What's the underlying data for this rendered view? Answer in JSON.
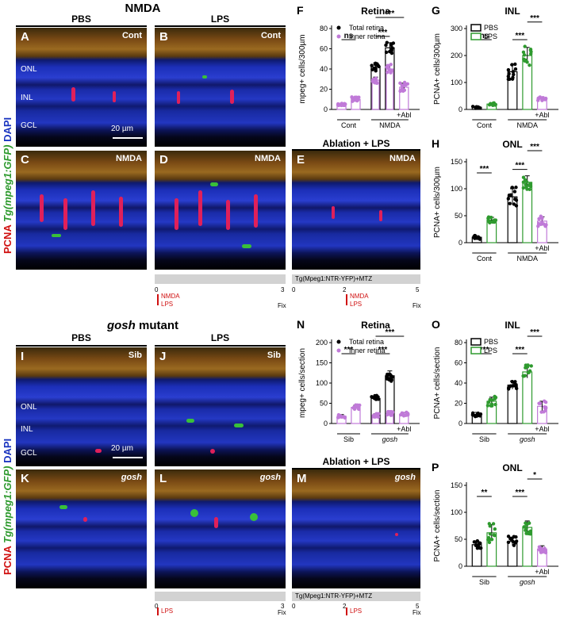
{
  "top": {
    "section_title": "NMDA",
    "col_pbs": "PBS",
    "col_lps": "LPS",
    "ablation_header": "Ablation + LPS",
    "side_label_red": "PCNA",
    "side_label_green": "Tg(mpeg1:GFP)",
    "side_label_blue": "DAPI",
    "panels": [
      {
        "letter": "A",
        "tag": "Cont"
      },
      {
        "letter": "B",
        "tag": "Cont"
      },
      {
        "letter": "C",
        "tag": "NMDA"
      },
      {
        "letter": "D",
        "tag": "NMDA"
      },
      {
        "letter": "E",
        "tag": "NMDA"
      }
    ],
    "layers": [
      "ONL",
      "INL",
      "GCL"
    ],
    "scale_bar": "20 µm",
    "timeline_d": {
      "start": "0",
      "end": "3",
      "fix": "Fix",
      "nmda": "NMDA",
      "lps": "LPS"
    },
    "timeline_e": {
      "bar_label": "Tg(Mpeg1:NTR-YFP)+MTZ",
      "start": "0",
      "mid": "2",
      "end": "5",
      "fix": "Fix",
      "nmda": "NMDA",
      "lps": "LPS"
    }
  },
  "bottom": {
    "section_title": "gosh",
    "section_title_suffix": "mutant",
    "col_pbs": "PBS",
    "col_lps": "LPS",
    "ablation_header": "Ablation + LPS",
    "side_label_red": "PCNA",
    "side_label_green": "Tg(mpeg1:GFP)",
    "side_label_blue": "DAPI",
    "panels": [
      {
        "letter": "I",
        "tag": "Sib"
      },
      {
        "letter": "J",
        "tag": "Sib"
      },
      {
        "letter": "K",
        "tag": "gosh"
      },
      {
        "letter": "L",
        "tag": "gosh"
      },
      {
        "letter": "M",
        "tag": "gosh"
      }
    ],
    "layers": [
      "ONL",
      "INL",
      "GCL"
    ],
    "scale_bar": "20 µm",
    "timeline_l": {
      "start": "0",
      "end": "3",
      "fix": "Fix",
      "lps": "LPS"
    },
    "timeline_m": {
      "bar_label": "Tg(Mpeg1:NTR-YFP)+MTZ",
      "start": "0",
      "mid": "2",
      "end": "5",
      "fix": "Fix",
      "lps": "LPS"
    }
  },
  "colors": {
    "pbs": "#000000",
    "lps": "#2e9a2e",
    "inner": "#c07ad8",
    "total": "#000000",
    "abl": "#c07ad8"
  },
  "chart_data": [
    {
      "letter": "F",
      "type": "bar",
      "title": "Retina",
      "ylabel": "mpeg+ cells/300µm",
      "ylim": [
        0,
        80
      ],
      "yticks": [
        0,
        20,
        40,
        60,
        80
      ],
      "legend": [
        "Total retina",
        "Inner retina"
      ],
      "groups": [
        {
          "label": "Cont",
          "bars": [
            0,
            1
          ]
        },
        {
          "label": "NMDA",
          "bars": [
            2,
            3,
            4
          ]
        }
      ],
      "abl_label": "+Abl",
      "bars": [
        {
          "value": 5,
          "err": 1,
          "kind": "inner",
          "lps": false
        },
        {
          "value": 10,
          "err": 2,
          "kind": "inner",
          "lps": true
        },
        {
          "value": 42,
          "err": 4,
          "kind": "total",
          "lps": false
        },
        {
          "value": 61,
          "err": 5,
          "kind": "total",
          "lps": true
        },
        {
          "value": 22,
          "err": 4,
          "kind": "abl",
          "lps": false
        }
      ],
      "overlay": [
        {
          "value": 29,
          "err": 3,
          "kind": "inner",
          "on": 2
        },
        {
          "value": 40,
          "err": 4,
          "kind": "inner",
          "on": 3
        }
      ],
      "sig": [
        {
          "a": 0,
          "b": 1,
          "level": 0,
          "text": "ns"
        },
        {
          "a": 2,
          "b": 3,
          "level": 0,
          "text": "***"
        },
        {
          "a": 2,
          "b": 4,
          "level": 1,
          "text": "***"
        }
      ]
    },
    {
      "letter": "G",
      "type": "bar",
      "title": "INL",
      "ylabel": "PCNA+ cells/300µm",
      "ylim": [
        0,
        300
      ],
      "yticks": [
        0,
        100,
        200,
        300
      ],
      "legend": [
        "PBS",
        "LPS"
      ],
      "groups": [
        {
          "label": "Cont",
          "bars": [
            0,
            1
          ]
        },
        {
          "label": "NMDA",
          "bars": [
            2,
            3,
            4
          ]
        }
      ],
      "abl_label": "+Abl",
      "bars": [
        {
          "value": 8,
          "err": 3,
          "kind": "pbs",
          "lps": false
        },
        {
          "value": 20,
          "err": 4,
          "kind": "lps",
          "lps": true
        },
        {
          "value": 140,
          "err": 25,
          "kind": "pbs",
          "lps": false
        },
        {
          "value": 200,
          "err": 30,
          "kind": "lps",
          "lps": true
        },
        {
          "value": 40,
          "err": 6,
          "kind": "abl",
          "lps": false
        }
      ],
      "sig": [
        {
          "a": 0,
          "b": 1,
          "level": 0,
          "text": "ns"
        },
        {
          "a": 2,
          "b": 3,
          "level": 0,
          "text": "***"
        },
        {
          "a": 3,
          "b": 4,
          "level": 1,
          "text": "***"
        }
      ]
    },
    {
      "letter": "H",
      "type": "bar",
      "title": "ONL",
      "ylabel": "PCNA+ cells/300µm",
      "ylim": [
        0,
        150
      ],
      "yticks": [
        0,
        50,
        100,
        150
      ],
      "groups": [
        {
          "label": "Cont",
          "bars": [
            0,
            1
          ]
        },
        {
          "label": "NMDA",
          "bars": [
            2,
            3,
            4
          ]
        }
      ],
      "abl_label": "+Abl",
      "bars": [
        {
          "value": 10,
          "err": 3,
          "kind": "pbs",
          "lps": false
        },
        {
          "value": 42,
          "err": 5,
          "kind": "lps",
          "lps": true
        },
        {
          "value": 85,
          "err": 15,
          "kind": "pbs",
          "lps": false
        },
        {
          "value": 112,
          "err": 12,
          "kind": "lps",
          "lps": true
        },
        {
          "value": 40,
          "err": 8,
          "kind": "abl",
          "lps": false
        }
      ],
      "sig": [
        {
          "a": 0,
          "b": 1,
          "level": 0,
          "text": "***"
        },
        {
          "a": 2,
          "b": 3,
          "level": 0,
          "text": "***"
        },
        {
          "a": 3,
          "b": 4,
          "level": 1,
          "text": "***"
        }
      ]
    },
    {
      "letter": "N",
      "type": "bar",
      "title": "Retina",
      "ylabel": "mpeg+ cells/section",
      "ylim": [
        0,
        200
      ],
      "yticks": [
        0,
        50,
        100,
        150,
        200
      ],
      "legend": [
        "Total retina",
        "Inner retina"
      ],
      "groups": [
        {
          "label": "Sib",
          "bars": [
            0,
            1
          ]
        },
        {
          "label": "gosh",
          "bars": [
            2,
            3,
            4
          ],
          "italic": true
        }
      ],
      "abl_label": "+Abl",
      "bars": [
        {
          "value": 18,
          "err": 4,
          "kind": "inner",
          "lps": false
        },
        {
          "value": 40,
          "err": 5,
          "kind": "inner",
          "lps": true
        },
        {
          "value": 62,
          "err": 6,
          "kind": "total",
          "lps": false
        },
        {
          "value": 118,
          "err": 12,
          "kind": "total",
          "lps": true
        },
        {
          "value": 22,
          "err": 5,
          "kind": "abl",
          "lps": false
        }
      ],
      "overlay": [
        {
          "value": 20,
          "err": 4,
          "kind": "inner",
          "on": 2
        },
        {
          "value": 25,
          "err": 5,
          "kind": "inner",
          "on": 3
        }
      ],
      "sig": [
        {
          "a": 0,
          "b": 1,
          "level": 0,
          "text": "***"
        },
        {
          "a": 2,
          "b": 3,
          "level": 0,
          "text": "***"
        },
        {
          "a": 2,
          "b": 4,
          "level": 1,
          "text": "***"
        }
      ]
    },
    {
      "letter": "O",
      "type": "bar",
      "title": "INL",
      "ylabel": "PCNA+ cells/section",
      "ylim": [
        0,
        80
      ],
      "yticks": [
        0,
        20,
        40,
        60,
        80
      ],
      "legend": [
        "PBS",
        "LPS"
      ],
      "groups": [
        {
          "label": "Sib",
          "bars": [
            0,
            1
          ]
        },
        {
          "label": "gosh",
          "bars": [
            2,
            3,
            4
          ],
          "italic": true
        }
      ],
      "abl_label": "+Abl",
      "bars": [
        {
          "value": 9,
          "err": 2,
          "kind": "pbs",
          "lps": false
        },
        {
          "value": 22,
          "err": 4,
          "kind": "lps",
          "lps": true
        },
        {
          "value": 38,
          "err": 4,
          "kind": "pbs",
          "lps": false
        },
        {
          "value": 51,
          "err": 6,
          "kind": "lps",
          "lps": true
        },
        {
          "value": 17,
          "err": 5,
          "kind": "abl",
          "lps": false
        }
      ],
      "sig": [
        {
          "a": 0,
          "b": 1,
          "level": 0,
          "text": "***"
        },
        {
          "a": 2,
          "b": 3,
          "level": 0,
          "text": "***"
        },
        {
          "a": 3,
          "b": 4,
          "level": 1,
          "text": "***"
        }
      ]
    },
    {
      "letter": "P",
      "type": "bar",
      "title": "ONL",
      "ylabel": "PCNA+ cells/section",
      "ylim": [
        0,
        150
      ],
      "yticks": [
        0,
        50,
        100,
        150
      ],
      "groups": [
        {
          "label": "Sib",
          "bars": [
            0,
            1
          ]
        },
        {
          "label": "gosh",
          "bars": [
            2,
            3,
            4
          ],
          "italic": true
        }
      ],
      "abl_label": "+Abl",
      "bars": [
        {
          "value": 40,
          "err": 6,
          "kind": "pbs",
          "lps": false
        },
        {
          "value": 62,
          "err": 15,
          "kind": "lps",
          "lps": true
        },
        {
          "value": 46,
          "err": 8,
          "kind": "pbs",
          "lps": false
        },
        {
          "value": 72,
          "err": 12,
          "kind": "lps",
          "lps": true
        },
        {
          "value": 32,
          "err": 6,
          "kind": "abl",
          "lps": false
        }
      ],
      "sig": [
        {
          "a": 0,
          "b": 1,
          "level": 0,
          "text": "**"
        },
        {
          "a": 2,
          "b": 3,
          "level": 0,
          "text": "***"
        },
        {
          "a": 3,
          "b": 4,
          "level": 1,
          "text": "*"
        }
      ]
    }
  ]
}
